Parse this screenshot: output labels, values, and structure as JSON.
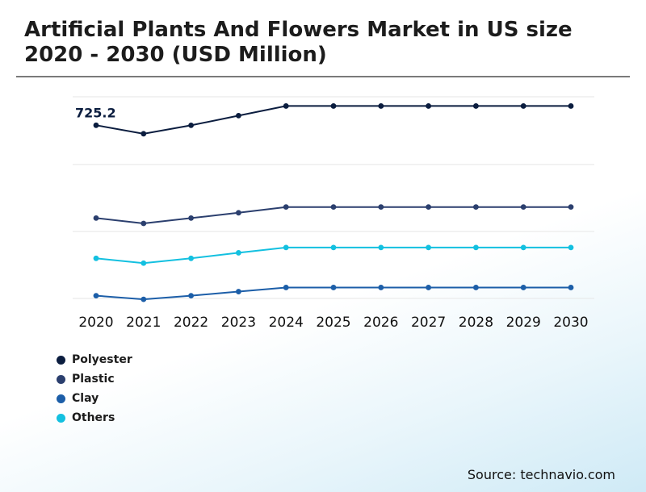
{
  "title": "Artificial Plants And Flowers Market in US size 2020 - 2030 (USD Million)",
  "source": "Source: technavio.com",
  "chart_data": {
    "type": "line",
    "x": [
      "2020",
      "2021",
      "2022",
      "2023",
      "2024",
      "2025",
      "2026",
      "2027",
      "2028",
      "2029",
      "2030"
    ],
    "ylim": [
      0,
      850
    ],
    "grid": true,
    "legend_position": "bottom-left",
    "annotations": [
      {
        "series": "Polyester",
        "x": "2020",
        "text": "725.2"
      }
    ],
    "series": [
      {
        "name": "Polyester",
        "color": "#0b1d3f",
        "values": [
          725.2,
          690,
          725,
          765,
          805,
          805,
          805,
          805,
          805,
          805,
          805
        ]
      },
      {
        "name": "Plastic",
        "color": "#2b3f6e",
        "values": [
          340,
          318,
          340,
          362,
          386,
          386,
          386,
          386,
          386,
          386,
          386
        ]
      },
      {
        "name": "Others",
        "color": "#13c0e0",
        "values": [
          173,
          153,
          173,
          196,
          218,
          218,
          218,
          218,
          218,
          218,
          218
        ]
      },
      {
        "name": "Clay",
        "color": "#1c5ea8",
        "values": [
          18,
          3,
          18,
          35,
          52,
          52,
          52,
          52,
          52,
          52,
          52
        ]
      }
    ]
  },
  "legend": [
    {
      "label": "Polyester",
      "color": "#0b1d3f"
    },
    {
      "label": "Plastic",
      "color": "#2b3f6e"
    },
    {
      "label": "Clay",
      "color": "#1c5ea8"
    },
    {
      "label": "Others",
      "color": "#13c0e0"
    }
  ]
}
